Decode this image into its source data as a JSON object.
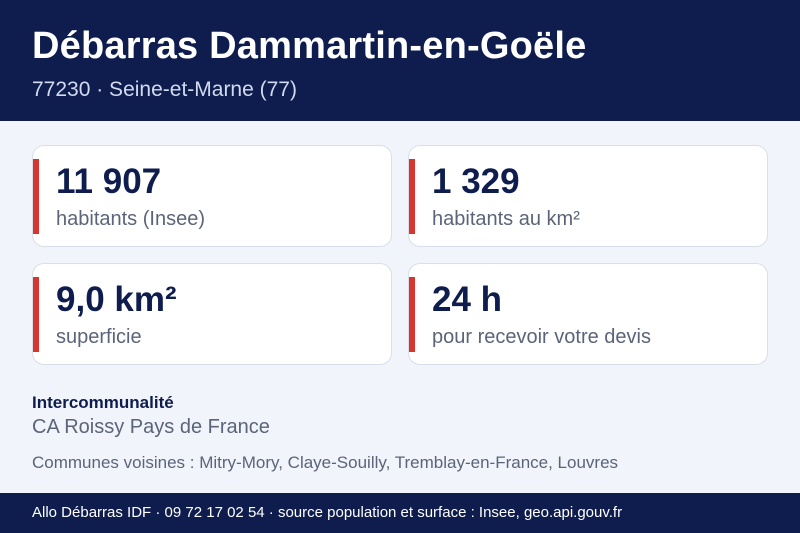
{
  "header": {
    "title": "Débarras Dammartin-en-Goële",
    "subtitle": "77230 · Seine-et-Marne (77)"
  },
  "stats": [
    {
      "value": "11 907",
      "label": "habitants (Insee)"
    },
    {
      "value": "1 329",
      "label": "habitants au km²"
    },
    {
      "value": "9,0 km²",
      "label": "superficie"
    },
    {
      "value": "24 h",
      "label": "pour recevoir votre devis"
    }
  ],
  "intercommunalite": {
    "title": "Intercommunalité",
    "name": "CA Roissy Pays de France"
  },
  "neighbors": "Communes voisines : Mitry-Mory, Claye-Souilly, Tremblay-en-France, Louvres",
  "footer": "Allo Débarras IDF · 09 72 17 02 54 · source population et surface : Insee, geo.api.gouv.fr",
  "colors": {
    "navy": "#0e1d4d",
    "accent_red": "#d8352e",
    "background": "#f1f4fa"
  }
}
